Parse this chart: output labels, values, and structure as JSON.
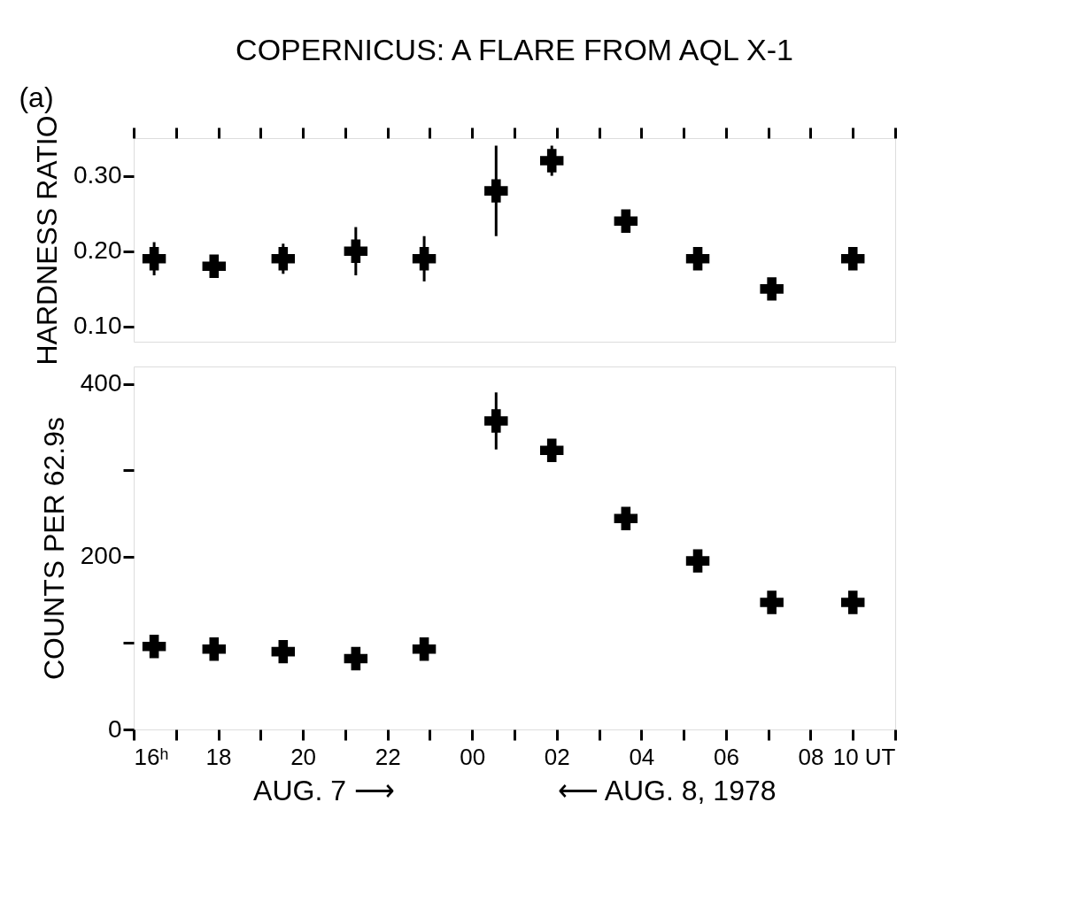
{
  "chart_data": [
    {
      "type": "scatter",
      "title": "COPERNICUS: A FLARE FROM AQL X-1",
      "ylabel": "HARDNESS RATIO",
      "annotations": [
        "(a)"
      ],
      "marker": "cross",
      "grid": false,
      "tick_labels": "y",
      "x": [
        "1978-08-07T16:29",
        "1978-08-07T17:54",
        "1978-08-07T19:32",
        "1978-08-07T21:15",
        "1978-08-07T22:52",
        "1978-08-08T00:34",
        "1978-08-08T01:53",
        "1978-08-08T03:38",
        "1978-08-08T05:20",
        "1978-08-08T07:05",
        "1978-08-08T09:00"
      ],
      "values": [
        0.19,
        0.18,
        0.19,
        0.2,
        0.19,
        0.28,
        0.32,
        0.24,
        0.19,
        0.15,
        0.19
      ],
      "errors": [
        0.022,
        0.008,
        0.02,
        0.032,
        0.03,
        0.06,
        0.02,
        0.01,
        0.01,
        0.012,
        0.01
      ],
      "xlim": [
        "1978-08-07T16:00",
        "1978-08-08T10:00"
      ],
      "xticks": [
        {
          "value": "1978-08-07T16:00",
          "label": null
        },
        {
          "value": "1978-08-07T17:00",
          "label": null
        },
        {
          "value": "1978-08-07T18:00",
          "label": null
        },
        {
          "value": "1978-08-07T19:00",
          "label": null
        },
        {
          "value": "1978-08-07T20:00",
          "label": null
        },
        {
          "value": "1978-08-07T21:00",
          "label": null
        },
        {
          "value": "1978-08-07T22:00",
          "label": null
        },
        {
          "value": "1978-08-07T23:00",
          "label": null
        },
        {
          "value": "1978-08-08T00:00",
          "label": null
        },
        {
          "value": "1978-08-08T01:00",
          "label": null
        },
        {
          "value": "1978-08-08T02:00",
          "label": null
        },
        {
          "value": "1978-08-08T03:00",
          "label": null
        },
        {
          "value": "1978-08-08T04:00",
          "label": null
        },
        {
          "value": "1978-08-08T05:00",
          "label": null
        },
        {
          "value": "1978-08-08T06:00",
          "label": null
        },
        {
          "value": "1978-08-08T07:00",
          "label": null
        },
        {
          "value": "1978-08-08T08:00",
          "label": null
        },
        {
          "value": "1978-08-08T09:00",
          "label": null
        },
        {
          "value": "1978-08-08T10:00",
          "label": null
        }
      ],
      "ylim": [
        0.08,
        0.35
      ],
      "yticks": [
        {
          "value": 0.1,
          "label": "0.10"
        },
        {
          "value": 0.2,
          "label": "0.20"
        },
        {
          "value": 0.3,
          "label": "0.30"
        }
      ]
    },
    {
      "type": "scatter",
      "ylabel": "COUNTS PER 62.9s",
      "annotations": [
        "AUG. 7 ⟶",
        "⟵ AUG. 8, 1978"
      ],
      "marker": "cross",
      "grid": false,
      "x": [
        "1978-08-07T16:29",
        "1978-08-07T17:54",
        "1978-08-07T19:32",
        "1978-08-07T21:15",
        "1978-08-07T22:52",
        "1978-08-08T00:34",
        "1978-08-08T01:53",
        "1978-08-08T03:38",
        "1978-08-08T05:20",
        "1978-08-08T07:05",
        "1978-08-08T09:00"
      ],
      "values": [
        96,
        93,
        90,
        82,
        93,
        357,
        323,
        244,
        195,
        147,
        147
      ],
      "errors": [
        3,
        3,
        3,
        3,
        13,
        33,
        5,
        5,
        4,
        3,
        3
      ],
      "xlim": [
        "1978-08-07T16:00",
        "1978-08-08T10:00"
      ],
      "xticks": [
        {
          "value": "1978-08-07T16:00",
          "label": "16ʰ"
        },
        {
          "value": "1978-08-07T17:00",
          "label": null
        },
        {
          "value": "1978-08-07T18:00",
          "label": "18"
        },
        {
          "value": "1978-08-07T19:00",
          "label": null
        },
        {
          "value": "1978-08-07T20:00",
          "label": "20"
        },
        {
          "value": "1978-08-07T21:00",
          "label": null
        },
        {
          "value": "1978-08-07T22:00",
          "label": "22"
        },
        {
          "value": "1978-08-07T23:00",
          "label": null
        },
        {
          "value": "1978-08-08T00:00",
          "label": "00"
        },
        {
          "value": "1978-08-08T01:00",
          "label": null
        },
        {
          "value": "1978-08-08T02:00",
          "label": "02"
        },
        {
          "value": "1978-08-08T03:00",
          "label": null
        },
        {
          "value": "1978-08-08T04:00",
          "label": "04"
        },
        {
          "value": "1978-08-08T05:00",
          "label": null
        },
        {
          "value": "1978-08-08T06:00",
          "label": "06"
        },
        {
          "value": "1978-08-08T07:00",
          "label": null
        },
        {
          "value": "1978-08-08T08:00",
          "label": "08"
        },
        {
          "value": "1978-08-08T09:00",
          "label": null
        },
        {
          "value": "1978-08-08T10:00",
          "label": "10 UT"
        }
      ],
      "ylim": [
        0,
        420
      ],
      "yticks": [
        0,
        {
          "value": 100,
          "label": null
        },
        200,
        {
          "value": 300,
          "label": null
        },
        400
      ]
    }
  ]
}
